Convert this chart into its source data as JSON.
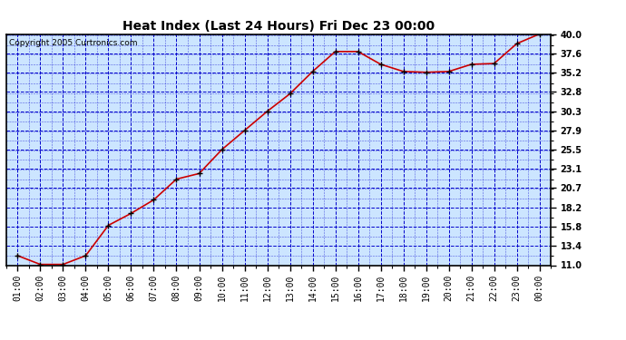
{
  "title": "Heat Index (Last 24 Hours) Fri Dec 23 00:00",
  "copyright": "Copyright 2005 Curtronics.com",
  "x_labels": [
    "01:00",
    "02:00",
    "03:00",
    "04:00",
    "05:00",
    "06:00",
    "07:00",
    "08:00",
    "09:00",
    "10:00",
    "11:00",
    "12:00",
    "13:00",
    "14:00",
    "15:00",
    "16:00",
    "17:00",
    "18:00",
    "19:00",
    "20:00",
    "21:00",
    "22:00",
    "23:00",
    "00:00"
  ],
  "y_values": [
    12.2,
    11.1,
    11.1,
    12.2,
    16.0,
    17.5,
    19.2,
    21.8,
    22.5,
    25.5,
    27.9,
    30.3,
    32.5,
    35.3,
    37.8,
    37.8,
    36.2,
    35.3,
    35.2,
    35.3,
    36.2,
    36.3,
    38.8,
    40.0
  ],
  "line_color": "#cc0000",
  "marker_color": "#000000",
  "bg_color": "#cce5ff",
  "outer_bg_color": "#ffffff",
  "grid_major_color": "#0000cc",
  "grid_minor_color": "#0000cc",
  "title_color": "#000000",
  "yticks": [
    11.0,
    13.4,
    15.8,
    18.2,
    20.7,
    23.1,
    25.5,
    27.9,
    30.3,
    32.8,
    35.2,
    37.6,
    40.0
  ],
  "ymin": 11.0,
  "ymax": 40.0,
  "title_fontsize": 10,
  "tick_fontsize": 7,
  "copyright_fontsize": 6.5
}
